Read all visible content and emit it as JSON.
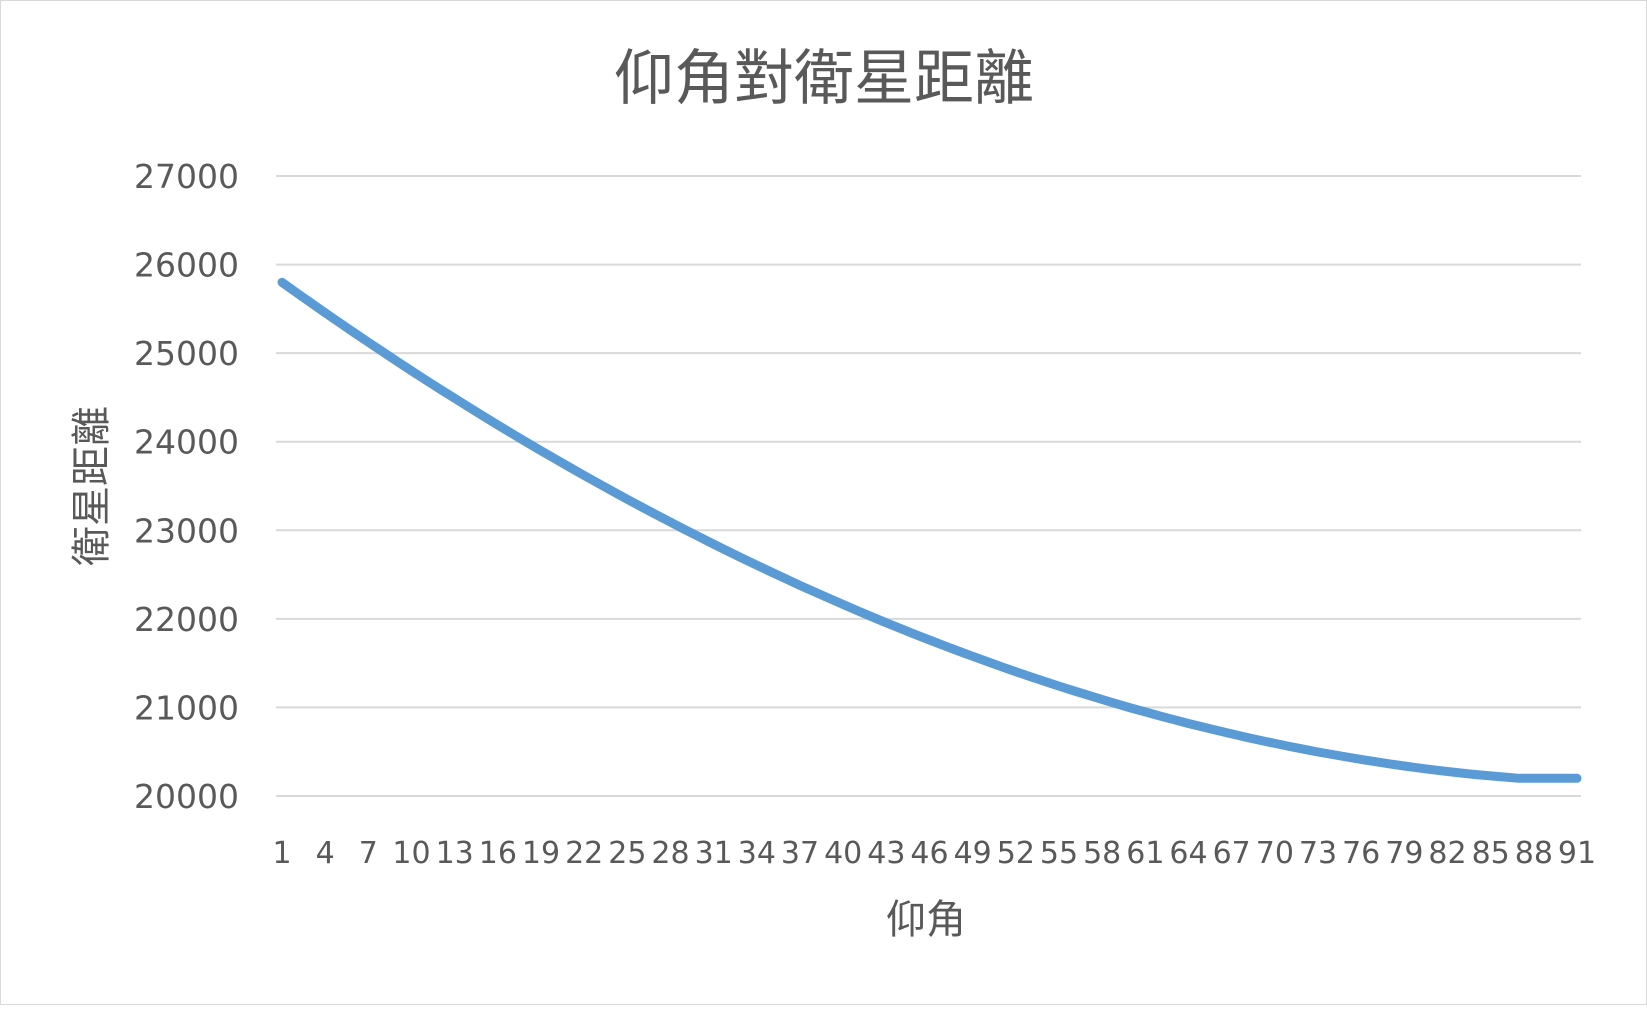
{
  "chart_data": {
    "type": "line",
    "title": "仰角對衛星距離",
    "xlabel": "仰角",
    "ylabel": "衛星距離",
    "x": [
      1,
      2,
      3,
      4,
      5,
      6,
      7,
      8,
      9,
      10,
      11,
      12,
      13,
      14,
      15,
      16,
      17,
      18,
      19,
      20,
      21,
      22,
      23,
      24,
      25,
      26,
      27,
      28,
      29,
      30,
      31,
      32,
      33,
      34,
      35,
      36,
      37,
      38,
      39,
      40,
      41,
      42,
      43,
      44,
      45,
      46,
      47,
      48,
      49,
      50,
      51,
      52,
      53,
      54,
      55,
      56,
      57,
      58,
      59,
      60,
      61,
      62,
      63,
      64,
      65,
      66,
      67,
      68,
      69,
      70,
      71,
      72,
      73,
      74,
      75,
      76,
      77,
      78,
      79,
      80,
      81,
      82,
      83,
      84,
      85,
      86,
      87,
      88,
      89,
      90,
      91
    ],
    "x_tick_labels": [
      "1",
      "4",
      "7",
      "10",
      "13",
      "16",
      "19",
      "22",
      "25",
      "28",
      "31",
      "34",
      "37",
      "40",
      "43",
      "46",
      "49",
      "52",
      "55",
      "58",
      "61",
      "64",
      "67",
      "70",
      "73",
      "76",
      "79",
      "82",
      "85",
      "88",
      "91"
    ],
    "series": [
      {
        "values": [
          25800,
          25684,
          25569,
          25456,
          25344,
          25233,
          25123,
          25015,
          24907,
          24801,
          24696,
          24592,
          24490,
          24388,
          24288,
          24189,
          24091,
          23995,
          23899,
          23805,
          23711,
          23619,
          23528,
          23439,
          23350,
          23263,
          23177,
          23092,
          23008,
          22925,
          22843,
          22763,
          22684,
          22606,
          22529,
          22453,
          22378,
          22305,
          22233,
          22162,
          22092,
          22023,
          21956,
          21890,
          21825,
          21761,
          21698,
          21637,
          21577,
          21518,
          21460,
          21403,
          21348,
          21294,
          21241,
          21189,
          21139,
          21089,
          21041,
          20994,
          20949,
          20904,
          20861,
          20819,
          20779,
          20739,
          20701,
          20664,
          20628,
          20594,
          20560,
          20528,
          20497,
          20468,
          20440,
          20413,
          20387,
          20362,
          20339,
          20317,
          20296,
          20277,
          20259,
          20242,
          20227,
          20213,
          20200,
          20200,
          20200,
          20200,
          20200
        ],
        "color": "#5b9bd5"
      }
    ],
    "yticks": [
      "20000",
      "21000",
      "22000",
      "23000",
      "24000",
      "25000",
      "26000",
      "27000"
    ],
    "ylim": [
      20000,
      27000
    ],
    "grid": true,
    "legend": "none"
  }
}
